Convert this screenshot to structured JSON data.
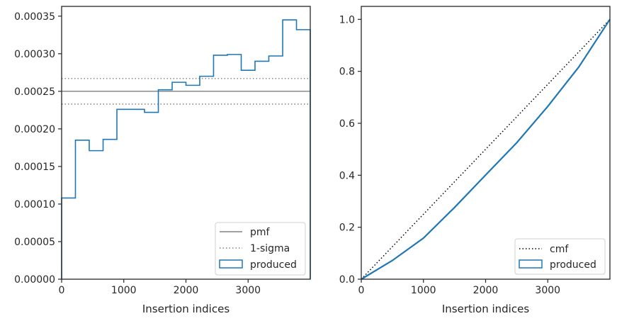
{
  "chart_data": [
    {
      "type": "histogram",
      "xlabel": "Insertion indices",
      "ylabel": "",
      "xlim": [
        0,
        4000
      ],
      "ylim": [
        0,
        0.000363
      ],
      "xticks": [
        0,
        1000,
        2000,
        3000
      ],
      "xtick_labels": [
        "0",
        "1000",
        "2000",
        "3000"
      ],
      "yticks": [
        0,
        5e-05,
        0.0001,
        0.00015,
        0.0002,
        0.00025,
        0.0003,
        0.00035
      ],
      "ytick_labels": [
        "0.00000",
        "0.00005",
        "0.00010",
        "0.00015",
        "0.00020",
        "0.00025",
        "0.00030",
        "0.00035"
      ],
      "grid": false,
      "legend_position": "lower-right",
      "lines": [
        {
          "name": "pmf",
          "y": 0.00025,
          "style": "solid",
          "color": "#808080"
        },
        {
          "name": "1-sigma",
          "y": 0.000267,
          "style": "dotted",
          "color": "#808080"
        },
        {
          "name": "1-sigma",
          "y": 0.000233,
          "style": "dotted",
          "color": "#808080",
          "legend": false
        }
      ],
      "series": [
        {
          "name": "produced",
          "color": "#1f77b4",
          "bin_edges": [
            0,
            222,
            444,
            667,
            889,
            1111,
            1333,
            1556,
            1778,
            2000,
            2222,
            2444,
            2667,
            2889,
            3111,
            3333,
            3556,
            3778,
            4000
          ],
          "values": [
            0.000108,
            0.000185,
            0.000171,
            0.000186,
            0.000226,
            0.000226,
            0.000222,
            0.000252,
            0.000262,
            0.000258,
            0.00027,
            0.000298,
            0.000299,
            0.000278,
            0.00029,
            0.000297,
            0.000345,
            0.000332
          ]
        }
      ]
    },
    {
      "type": "line",
      "xlabel": "Insertion indices",
      "ylabel": "",
      "xlim": [
        0,
        4000
      ],
      "ylim": [
        0,
        1.05
      ],
      "xticks": [
        0,
        1000,
        2000,
        3000
      ],
      "xtick_labels": [
        "0",
        "1000",
        "2000",
        "3000"
      ],
      "yticks": [
        0,
        0.2,
        0.4,
        0.6,
        0.8,
        1.0
      ],
      "ytick_labels": [
        "0.0",
        "0.2",
        "0.4",
        "0.6",
        "0.8",
        "1.0"
      ],
      "grid": false,
      "legend_position": "lower-right",
      "series": [
        {
          "name": "cmf",
          "style": "dotted",
          "color": "#000000",
          "x": [
            0,
            4000
          ],
          "y": [
            0,
            1.0
          ]
        },
        {
          "name": "produced",
          "style": "solid",
          "color": "#1f77b4",
          "x": [
            0,
            500,
            1000,
            1500,
            2000,
            2500,
            3000,
            3500,
            4000
          ],
          "y": [
            0,
            0.072,
            0.158,
            0.276,
            0.401,
            0.525,
            0.665,
            0.817,
            1.0
          ]
        }
      ]
    }
  ]
}
